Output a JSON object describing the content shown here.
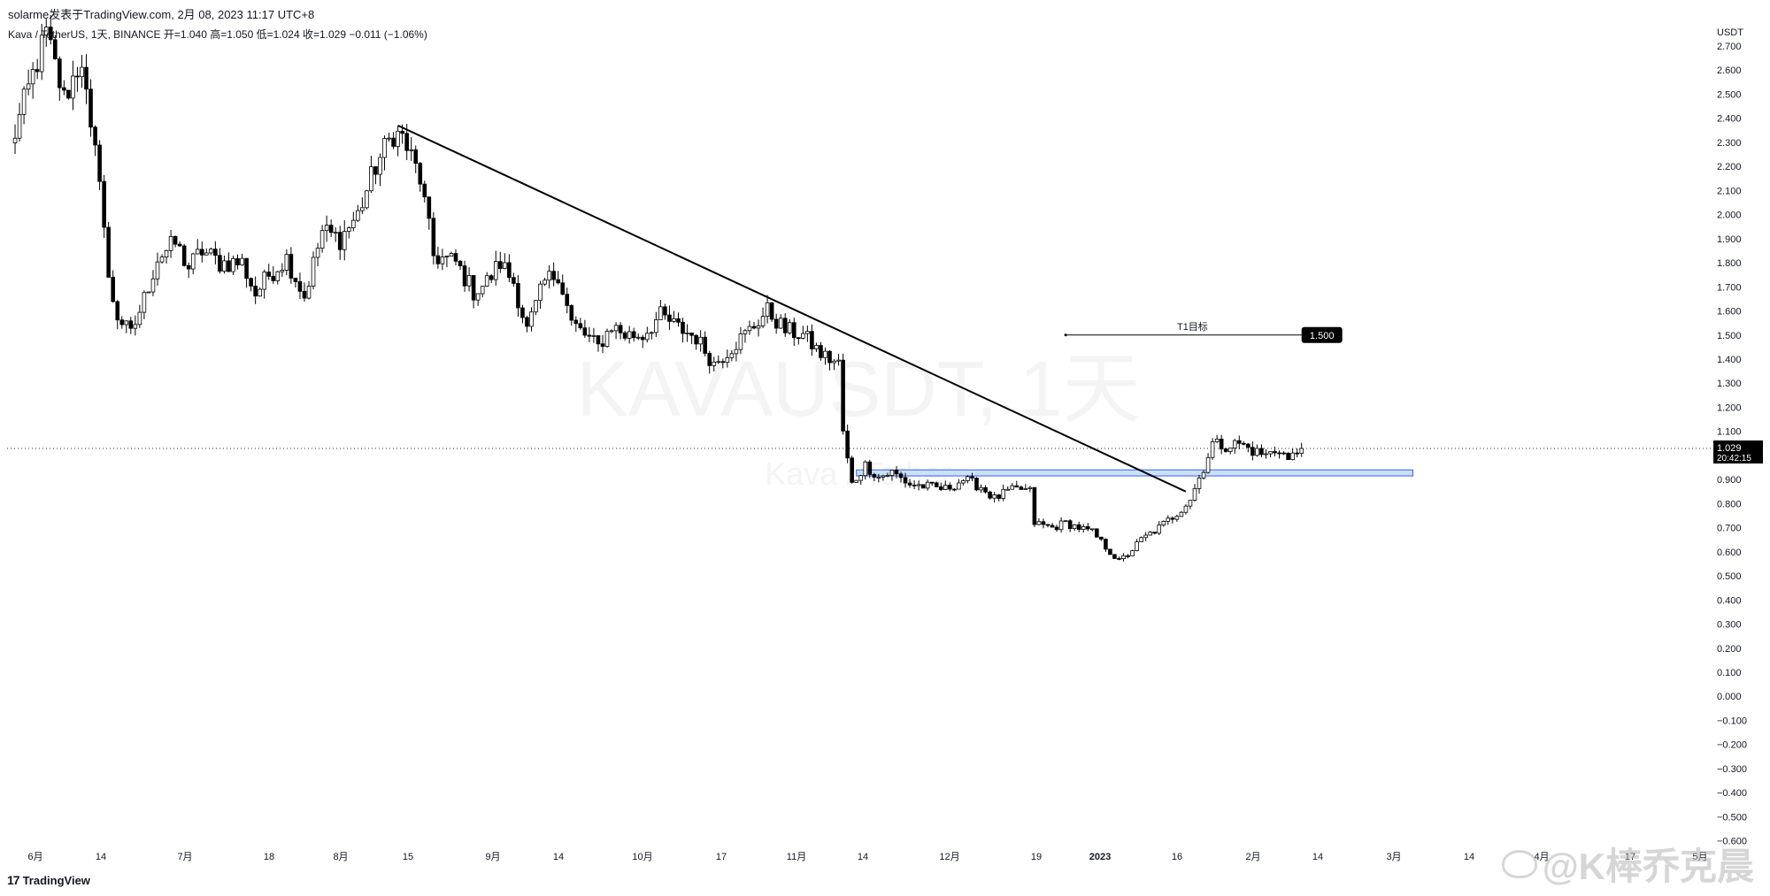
{
  "header": {
    "publisher": "solarme发表于TradingView.com,   2月 08, 2023 11:17 UTC+8",
    "symbol_line": "Kava / TetherUS, 1天, BINANCE  开=1.040  高=1.050  低=1.024  收=1.029  −0.011 (−1.06%)"
  },
  "watermark": {
    "symbol": "KAVAUSDT, 1天",
    "name": "Kava / Tether"
  },
  "branding": {
    "logo_mark": "17",
    "logo_text": "TradingView",
    "social_handle": "@K棒乔克晨"
  },
  "colors": {
    "up": "#ffffff",
    "down": "#000000",
    "wick": "#000000",
    "support_fill": "#cfe0f5",
    "support_stroke": "#2962ff",
    "price_label_bg": "#000000",
    "grid_dots": "#333333"
  },
  "chart_data": {
    "type": "candlestick",
    "title": "Kava / TetherUS, 1天, BINANCE",
    "ylabel": "USDT",
    "ylim": [
      -0.6,
      2.75
    ],
    "y_ticks": [
      "2.700",
      "2.600",
      "2.500",
      "2.400",
      "2.300",
      "2.200",
      "2.100",
      "2.000",
      "1.900",
      "1.800",
      "1.700",
      "1.600",
      "1.500",
      "1.400",
      "1.300",
      "1.200",
      "1.100",
      "1.000",
      "0.900",
      "0.800",
      "0.700",
      "0.600",
      "0.500",
      "0.400",
      "0.300",
      "0.200",
      "0.100",
      "0.000",
      "−0.100",
      "−0.200",
      "−0.300",
      "−0.400",
      "−0.500",
      "−0.600"
    ],
    "x_labels": [
      "6月",
      "14",
      "7月",
      "18",
      "8月",
      "15",
      "9月",
      "14",
      "10月",
      "17",
      "11月",
      "14",
      "12月",
      "19",
      "2023",
      "16",
      "2月",
      "14",
      "3月",
      "14",
      "4月",
      "17",
      "5月"
    ],
    "current_price": {
      "value": 1.029,
      "label": "1.029",
      "countdown": "20:42:15"
    },
    "trendline": {
      "from": {
        "index": 87,
        "price": 2.37
      },
      "to": {
        "index": 264,
        "price": 0.85
      }
    },
    "support_zone": {
      "from_index": 190,
      "to_index": 315,
      "price_low": 0.915,
      "price_high": 0.94
    },
    "target": {
      "label": "T1目标",
      "price": 1.5,
      "price_label": "1.500",
      "from_index": 237,
      "to_index": 290
    },
    "candle_count": 290,
    "anchors": [
      [
        0,
        2.28
      ],
      [
        5,
        2.58
      ],
      [
        8,
        2.75
      ],
      [
        12,
        2.48
      ],
      [
        16,
        2.65
      ],
      [
        18,
        2.32
      ],
      [
        20,
        2.18
      ],
      [
        22,
        1.72
      ],
      [
        24,
        1.58
      ],
      [
        27,
        1.5
      ],
      [
        30,
        1.65
      ],
      [
        33,
        1.82
      ],
      [
        37,
        1.88
      ],
      [
        40,
        1.78
      ],
      [
        43,
        1.85
      ],
      [
        47,
        1.8
      ],
      [
        52,
        1.8
      ],
      [
        55,
        1.67
      ],
      [
        58,
        1.75
      ],
      [
        62,
        1.82
      ],
      [
        66,
        1.66
      ],
      [
        70,
        1.93
      ],
      [
        74,
        1.9
      ],
      [
        78,
        2.0
      ],
      [
        82,
        2.2
      ],
      [
        86,
        2.34
      ],
      [
        88,
        2.32
      ],
      [
        92,
        2.15
      ],
      [
        95,
        1.83
      ],
      [
        100,
        1.8
      ],
      [
        104,
        1.68
      ],
      [
        107,
        1.72
      ],
      [
        110,
        1.8
      ],
      [
        113,
        1.72
      ],
      [
        116,
        1.52
      ],
      [
        120,
        1.72
      ],
      [
        123,
        1.76
      ],
      [
        126,
        1.55
      ],
      [
        129,
        1.5
      ],
      [
        132,
        1.45
      ],
      [
        135,
        1.54
      ],
      [
        138,
        1.5
      ],
      [
        142,
        1.5
      ],
      [
        146,
        1.58
      ],
      [
        150,
        1.53
      ],
      [
        154,
        1.49
      ],
      [
        158,
        1.38
      ],
      [
        162,
        1.45
      ],
      [
        166,
        1.52
      ],
      [
        170,
        1.6
      ],
      [
        174,
        1.52
      ],
      [
        178,
        1.5
      ],
      [
        182,
        1.42
      ],
      [
        186,
        1.38
      ],
      [
        187,
        1.1
      ],
      [
        188,
        0.98
      ],
      [
        189,
        0.88
      ],
      [
        192,
        0.96
      ],
      [
        195,
        0.91
      ],
      [
        198,
        0.93
      ],
      [
        202,
        0.88
      ],
      [
        206,
        0.87
      ],
      [
        210,
        0.86
      ],
      [
        214,
        0.9
      ],
      [
        218,
        0.87
      ],
      [
        221,
        0.82
      ],
      [
        224,
        0.85
      ],
      [
        227,
        0.86
      ],
      [
        229,
        0.85
      ],
      [
        230,
        0.72
      ],
      [
        234,
        0.7
      ],
      [
        237,
        0.72
      ],
      [
        240,
        0.7
      ],
      [
        243,
        0.68
      ],
      [
        246,
        0.62
      ],
      [
        249,
        0.56
      ],
      [
        251,
        0.59
      ],
      [
        254,
        0.65
      ],
      [
        258,
        0.7
      ],
      [
        262,
        0.76
      ],
      [
        265,
        0.82
      ],
      [
        268,
        0.95
      ],
      [
        270,
        1.05
      ],
      [
        273,
        1.04
      ],
      [
        276,
        1.05
      ],
      [
        279,
        1.02
      ],
      [
        282,
        1.0
      ],
      [
        285,
        1.03
      ],
      [
        287,
        0.98
      ],
      [
        290,
        1.029
      ]
    ]
  }
}
